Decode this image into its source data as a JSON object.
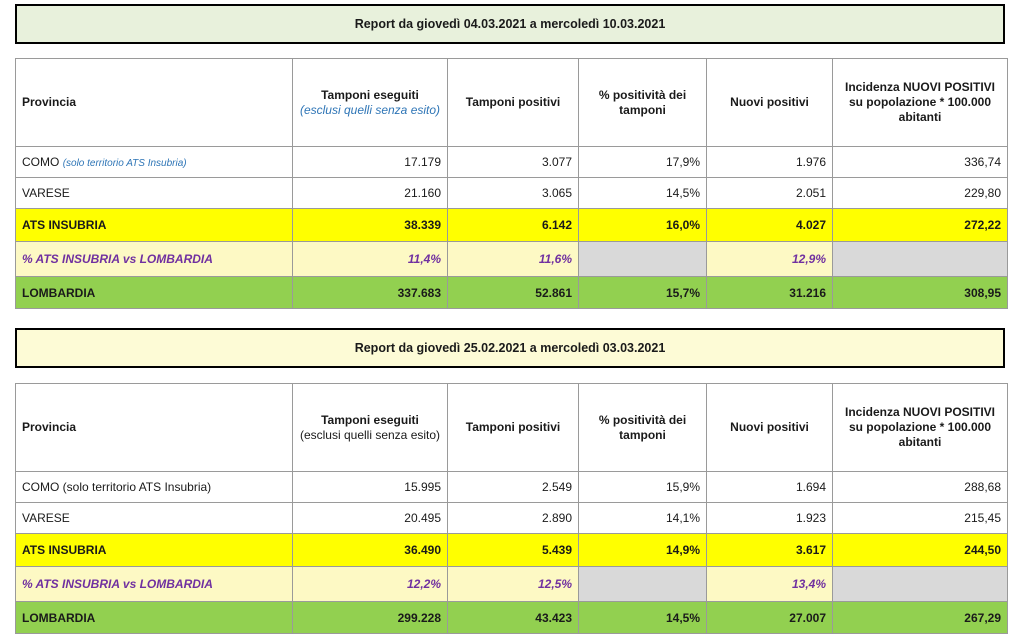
{
  "columns": {
    "provincia": "Provincia",
    "tamponi_eseguiti": "Tamponi eseguiti",
    "tamponi_eseguiti_note": "(esclusi quelli senza esito)",
    "tamponi_positivi": "Tamponi positivi",
    "positivita": "% positività dei tamponi",
    "nuovi_positivi": "Nuovi positivi",
    "incidenza": "Incidenza NUOVI POSITIVI su popolazione * 100.000 abitanti"
  },
  "reports": [
    {
      "title": "Report da giovedì 04.03.2021 a mercoledì 10.03.2021",
      "rows": [
        {
          "provincia": "COMO",
          "note": "(solo territorio ATS Insubria)",
          "tamponi_eseguiti": "17.179",
          "tamponi_positivi": "3.077",
          "positivita": "17,9%",
          "nuovi_positivi": "1.976",
          "incidenza": "336,74"
        },
        {
          "provincia": "VARESE",
          "tamponi_eseguiti": "21.160",
          "tamponi_positivi": "3.065",
          "positivita": "14,5%",
          "nuovi_positivi": "2.051",
          "incidenza": "229,80"
        },
        {
          "provincia": "ATS INSUBRIA",
          "tamponi_eseguiti": "38.339",
          "tamponi_positivi": "6.142",
          "positivita": "16,0%",
          "nuovi_positivi": "4.027",
          "incidenza": "272,22"
        },
        {
          "provincia": "% ATS INSUBRIA vs LOMBARDIA",
          "tamponi_eseguiti": "11,4%",
          "tamponi_positivi": "11,6%",
          "positivita": "",
          "nuovi_positivi": "12,9%",
          "incidenza": ""
        },
        {
          "provincia": "LOMBARDIA",
          "tamponi_eseguiti": "337.683",
          "tamponi_positivi": "52.861",
          "positivita": "15,7%",
          "nuovi_positivi": "31.216",
          "incidenza": "308,95"
        }
      ]
    },
    {
      "title": "Report da giovedì 25.02.2021 a mercoledì 03.03.2021",
      "rows": [
        {
          "provincia": "COMO (solo territorio ATS Insubria)",
          "tamponi_eseguiti": "15.995",
          "tamponi_positivi": "2.549",
          "positivita": "15,9%",
          "nuovi_positivi": "1.694",
          "incidenza": "288,68"
        },
        {
          "provincia": "VARESE",
          "tamponi_eseguiti": "20.495",
          "tamponi_positivi": "2.890",
          "positivita": "14,1%",
          "nuovi_positivi": "1.923",
          "incidenza": "215,45"
        },
        {
          "provincia": "ATS INSUBRIA",
          "tamponi_eseguiti": "36.490",
          "tamponi_positivi": "5.439",
          "positivita": "14,9%",
          "nuovi_positivi": "3.617",
          "incidenza": "244,50"
        },
        {
          "provincia": "% ATS INSUBRIA vs LOMBARDIA",
          "tamponi_eseguiti": "12,2%",
          "tamponi_positivi": "12,5%",
          "positivita": "",
          "nuovi_positivi": "13,4%",
          "incidenza": ""
        },
        {
          "provincia": "LOMBARDIA",
          "tamponi_eseguiti": "299.228",
          "tamponi_positivi": "43.423",
          "positivita": "14,5%",
          "nuovi_positivi": "27.007",
          "incidenza": "267,29"
        }
      ]
    }
  ]
}
